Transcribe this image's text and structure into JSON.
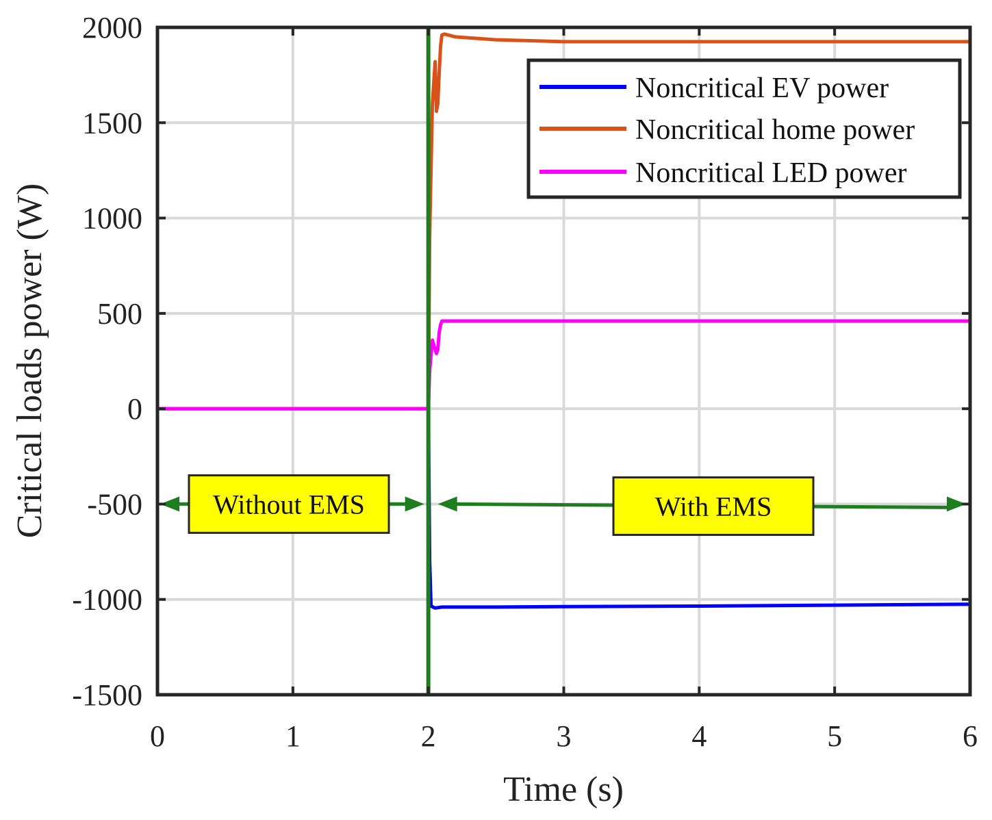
{
  "chart_data": {
    "type": "line",
    "title": "",
    "xlabel": "Time (s)",
    "ylabel": "Critical loads power (W)",
    "xlim": [
      0,
      6
    ],
    "ylim": [
      -1500,
      2000
    ],
    "xticks": [
      0,
      1,
      2,
      3,
      4,
      5,
      6
    ],
    "yticks": [
      -1500,
      -1000,
      -500,
      0,
      500,
      1000,
      1500,
      2000
    ],
    "xtick_labels": [
      "0",
      "1",
      "2",
      "3",
      "4",
      "5",
      "6"
    ],
    "ytick_labels": [
      "-1500",
      "-1000",
      "-500",
      "0",
      "500",
      "1000",
      "1500",
      "2000"
    ],
    "grid": true,
    "legend_position": "top-right",
    "series": [
      {
        "name": "Noncritical EV power",
        "color": "#0000ff",
        "x": [
          0,
          1.99,
          2.0,
          2.01,
          2.02,
          2.05,
          2.1,
          2.5,
          3,
          4,
          5,
          6
        ],
        "y": [
          0,
          0,
          0,
          -800,
          -1035,
          -1045,
          -1040,
          -1040,
          -1038,
          -1035,
          -1030,
          -1025
        ]
      },
      {
        "name": "Noncritical home power",
        "color": "#d95319",
        "x": [
          0,
          1.99,
          2.0,
          2.01,
          2.03,
          2.05,
          2.06,
          2.07,
          2.08,
          2.09,
          2.1,
          2.12,
          2.2,
          2.5,
          3,
          4,
          5,
          6
        ],
        "y": [
          0,
          0,
          0,
          900,
          1600,
          1820,
          1560,
          1600,
          1760,
          1900,
          1960,
          1965,
          1950,
          1935,
          1925,
          1925,
          1925,
          1925
        ]
      },
      {
        "name": "Noncritical LED power",
        "color": "#ff00ff",
        "x": [
          0,
          1.99,
          2.0,
          2.01,
          2.03,
          2.05,
          2.06,
          2.07,
          2.08,
          2.09,
          2.1,
          2.12,
          2.5,
          6
        ],
        "y": [
          0,
          0,
          0,
          200,
          360,
          310,
          290,
          310,
          400,
          440,
          460,
          460,
          460,
          460
        ]
      }
    ],
    "annotations": {
      "divider_x": 2,
      "divider_color": "#1e7d1e",
      "arrow_color": "#1e7d1e",
      "box_color": "#ffff00",
      "arrow_y": -500,
      "without": {
        "label": "Without EMS",
        "from": 0,
        "to": 2
      },
      "with": {
        "label": "With EMS",
        "from": 2,
        "to": 6
      }
    }
  }
}
